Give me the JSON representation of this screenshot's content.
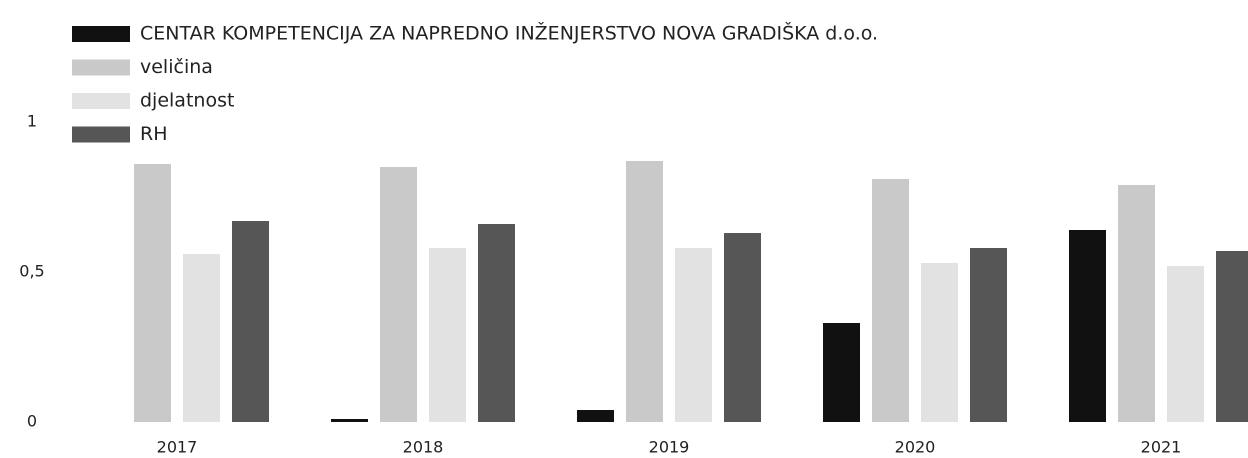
{
  "chart_data": {
    "type": "bar",
    "categories": [
      "2017",
      "2018",
      "2019",
      "2020",
      "2021"
    ],
    "series": [
      {
        "name": "CENTAR KOMPETENCIJA ZA NAPREDNO INŽENJERSTVO NOVA GRADIŠKA d.o.o.",
        "color": "#111111",
        "values": [
          null,
          0.01,
          0.04,
          0.33,
          0.64
        ]
      },
      {
        "name": "veličina",
        "color": "#c9c9c9",
        "values": [
          0.86,
          0.85,
          0.87,
          0.81,
          0.79
        ]
      },
      {
        "name": "djelatnost",
        "color": "#e2e2e2",
        "values": [
          0.56,
          0.58,
          0.58,
          0.53,
          0.52
        ]
      },
      {
        "name": "RH",
        "color": "#565656",
        "values": [
          0.67,
          0.66,
          0.63,
          0.58,
          0.57
        ]
      }
    ],
    "ylim": [
      0,
      1
    ],
    "yticks": [
      0,
      {
        "value": 0.5,
        "label": "0,5"
      },
      1
    ],
    "grid": false
  }
}
